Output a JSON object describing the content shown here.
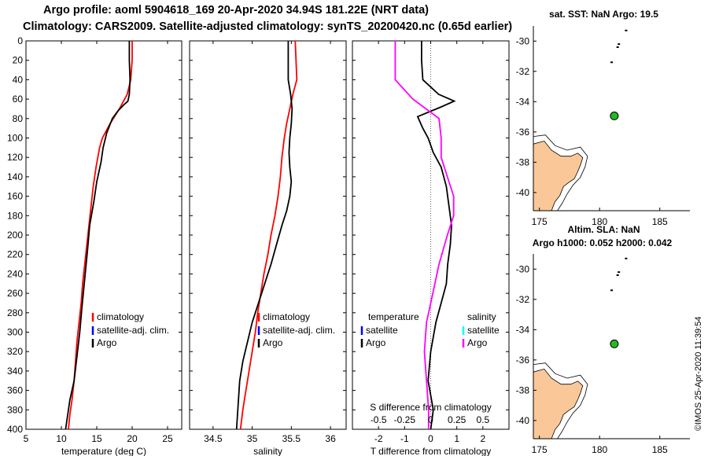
{
  "header": {
    "line1": "Argo profile: aoml 5904618_169 20-Apr-2020 34.94S 181.22E (NRT data)",
    "line2": "Climatology: CARS2009. Satellite-adjusted climatology: synTS_20200420.nc (0.65d earlier)"
  },
  "credit": "©IMOS 25-Apr-2020 11:39:54",
  "colors": {
    "argo": "#000000",
    "climatology": "#ff0000",
    "satellite": "#0000ff",
    "salinity_diff": "#ff00ff",
    "salinity_sat": "#00ffff",
    "land": "#fac898"
  },
  "chart_data": [
    {
      "id": "temperature",
      "type": "line",
      "xlabel": "temperature (deg C)",
      "ylabel": "",
      "xlim": [
        5,
        27
      ],
      "xticks": [
        5,
        10,
        15,
        20,
        25
      ],
      "xtick_labels": [
        "5",
        "10",
        "15",
        "20",
        "25"
      ],
      "ylim": [
        0,
        400
      ],
      "yticks": [
        0,
        20,
        40,
        60,
        80,
        100,
        120,
        140,
        160,
        180,
        200,
        220,
        240,
        260,
        280,
        300,
        320,
        340,
        360,
        380,
        400
      ],
      "ytick_labels": [
        "0",
        "20",
        "40",
        "60",
        "80",
        "100",
        "120",
        "140",
        "160",
        "180",
        "200",
        "220",
        "240",
        "260",
        "280",
        "300",
        "320",
        "340",
        "360",
        "380",
        "400"
      ],
      "legend": [
        "climatology",
        "satellite-adj. clim.",
        "Argo"
      ],
      "series": [
        {
          "name": "climatology",
          "color": "red",
          "x": [
            20.0,
            20.0,
            19.8,
            19.3,
            18.2,
            16.9,
            15.8,
            15.4,
            14.9,
            14.5,
            14.2,
            13.9,
            13.6,
            13.3,
            13.0,
            12.8,
            12.5,
            12.2,
            12.0,
            11.8,
            11.5,
            11.2,
            11.0
          ],
          "y": [
            0,
            20,
            40,
            55,
            70,
            85,
            100,
            110,
            130,
            150,
            170,
            190,
            210,
            230,
            250,
            270,
            290,
            310,
            330,
            350,
            370,
            385,
            400
          ]
        },
        {
          "name": "Argo",
          "color": "black",
          "x": [
            19.6,
            19.6,
            19.7,
            19.6,
            19.4,
            18.8,
            18.0,
            17.2,
            16.4,
            15.9,
            15.6,
            15.0,
            14.6,
            14.0,
            13.7,
            13.3,
            12.9,
            12.6,
            12.2,
            11.8,
            11.2,
            10.8,
            10.6
          ],
          "y": [
            0,
            20,
            40,
            55,
            62,
            66,
            72,
            80,
            95,
            110,
            125,
            145,
            165,
            190,
            215,
            245,
            275,
            300,
            325,
            350,
            370,
            390,
            400
          ]
        }
      ]
    },
    {
      "id": "salinity",
      "type": "line",
      "xlabel": "salinity",
      "ylabel": "",
      "xlim": [
        34.2,
        36.2
      ],
      "xticks": [
        34.5,
        35,
        35.5,
        36
      ],
      "xtick_labels": [
        "34.5",
        "35",
        "35.5",
        "36"
      ],
      "ylim": [
        0,
        400
      ],
      "legend": [
        "climatology",
        "satellite-adj. clim.",
        "Argo"
      ],
      "series": [
        {
          "name": "climatology",
          "color": "red",
          "x": [
            35.55,
            35.56,
            35.57,
            35.52,
            35.48,
            35.44,
            35.41,
            35.38,
            35.36,
            35.33,
            35.29,
            35.24,
            35.2,
            35.15,
            35.11,
            35.07,
            35.04,
            35.0,
            34.96,
            34.92,
            34.88,
            34.85
          ],
          "y": [
            0,
            20,
            40,
            55,
            70,
            85,
            100,
            120,
            140,
            160,
            180,
            200,
            220,
            240,
            260,
            280,
            300,
            320,
            340,
            360,
            380,
            400
          ]
        },
        {
          "name": "Argo",
          "color": "black",
          "x": [
            35.46,
            35.46,
            35.46,
            35.49,
            35.51,
            35.5,
            35.48,
            35.47,
            35.48,
            35.5,
            35.48,
            35.44,
            35.38,
            35.31,
            35.24,
            35.16,
            35.08,
            35.0,
            34.94,
            34.88,
            34.84,
            34.82,
            34.8
          ],
          "y": [
            0,
            20,
            40,
            55,
            70,
            85,
            100,
            115,
            130,
            145,
            160,
            175,
            190,
            210,
            230,
            250,
            270,
            290,
            310,
            330,
            350,
            375,
            400
          ]
        }
      ]
    },
    {
      "id": "difference",
      "type": "line",
      "xlabel": "T difference from climatology",
      "top_label": "S difference from climatology",
      "xlim": [
        -3,
        3
      ],
      "xticks": [
        -2,
        -1,
        0,
        1,
        2
      ],
      "xtick_labels": [
        "-2",
        "-1",
        "0",
        "1",
        "2"
      ],
      "top_ticks": [
        -0.5,
        -0.25,
        0,
        0.25,
        0.5
      ],
      "top_tick_labels": [
        "-0.5",
        "-0.25",
        "0",
        "0.25",
        "0.5"
      ],
      "ylim": [
        0,
        400
      ],
      "legend_temperature_heading": "temperature",
      "legend_salinity_heading": "salinity",
      "legend_temperature": [
        "satellite",
        "Argo"
      ],
      "legend_salinity": [
        "satellite",
        "Argo"
      ],
      "series": [
        {
          "name": "T difference (Argo)",
          "color": "black",
          "x": [
            -0.35,
            -0.35,
            -0.3,
            0.3,
            0.9,
            0.4,
            -0.5,
            -0.3,
            -0.1,
            0.1,
            0.4,
            0.6,
            0.7,
            0.8,
            0.75,
            0.65,
            0.6,
            0.4,
            0.2,
            0.0,
            -0.1,
            0.1,
            0.0
          ],
          "y": [
            0,
            20,
            40,
            55,
            62,
            68,
            78,
            90,
            100,
            115,
            130,
            150,
            170,
            190,
            210,
            230,
            250,
            270,
            290,
            320,
            350,
            380,
            400
          ]
        },
        {
          "name": "S difference (Argo)",
          "color": "magenta",
          "x": [
            -0.34,
            -0.34,
            -0.34,
            -0.17,
            0.08,
            0.1,
            0.1,
            0.16,
            0.22,
            0.22,
            0.16,
            0.08,
            0.02,
            -0.04,
            -0.06,
            -0.04,
            -0.02,
            -0.02
          ],
          "y": [
            0,
            20,
            40,
            60,
            80,
            100,
            120,
            140,
            160,
            180,
            200,
            230,
            260,
            290,
            320,
            350,
            380,
            400
          ]
        }
      ]
    },
    {
      "id": "map-sst",
      "type": "scatter",
      "title": "sat. SST: NaN Argo: 19.5",
      "xlim": [
        174.5,
        187.5
      ],
      "xticks": [
        175,
        180,
        185
      ],
      "xtick_labels": [
        "175",
        "180",
        "185"
      ],
      "ylim": [
        -41.2,
        -29
      ],
      "yticks": [
        -30,
        -32,
        -34,
        -36,
        -38,
        -40
      ],
      "ytick_labels": [
        "-30",
        "-32",
        "-34",
        "-36",
        "-38",
        "-40"
      ],
      "points": [
        {
          "name": "Argo",
          "x": 181.22,
          "y": -34.94
        }
      ]
    },
    {
      "id": "map-sla",
      "type": "scatter",
      "title": "Altim. SLA: NaN",
      "subtitle": "Argo h1000: 0.052 h2000: 0.042",
      "xlim": [
        174.5,
        187.5
      ],
      "xticks": [
        175,
        180,
        185
      ],
      "xtick_labels": [
        "175",
        "180",
        "185"
      ],
      "ylim": [
        -41.2,
        -29
      ],
      "yticks": [
        -30,
        -32,
        -34,
        -36,
        -38,
        -40
      ],
      "ytick_labels": [
        "-30",
        "-32",
        "-34",
        "-36",
        "-38",
        "-40"
      ],
      "points": [
        {
          "name": "Argo",
          "x": 181.22,
          "y": -34.94
        }
      ]
    }
  ]
}
